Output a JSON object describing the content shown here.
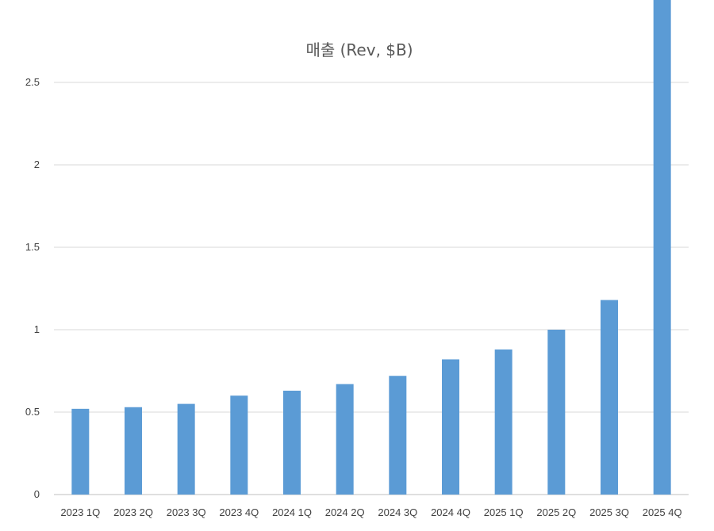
{
  "chart_data": {
    "type": "bar",
    "title": "매출 (Rev, $B)",
    "xlabel": "",
    "ylabel": "",
    "categories": [
      "2023 1Q",
      "2023 2Q",
      "2023 3Q",
      "2023 4Q",
      "2024 1Q",
      "2024 2Q",
      "2024 3Q",
      "2024 4Q",
      "2025 1Q",
      "2025 2Q",
      "2025 3Q",
      "2025 4Q"
    ],
    "values": [
      0.52,
      0.53,
      0.55,
      0.6,
      0.63,
      0.67,
      0.72,
      0.82,
      0.88,
      1.0,
      1.18,
      3.0
    ],
    "ylim": [
      0,
      3.0
    ],
    "yticks": [
      0,
      0.5,
      1,
      1.5,
      2,
      2.5
    ],
    "ytick_labels": [
      "0",
      "0.5",
      "1",
      "1.5",
      "2",
      "2.5"
    ],
    "bar_color": "#5b9bd5",
    "grid": true,
    "legend": "none"
  }
}
